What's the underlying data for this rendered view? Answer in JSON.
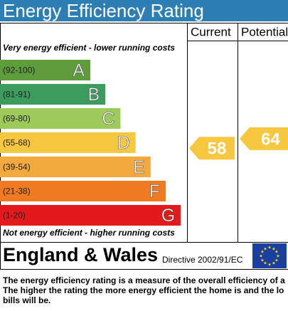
{
  "header": {
    "title": "Energy Efficiency Rating"
  },
  "table": {
    "columns": [
      "Current",
      "Potential"
    ],
    "top_note": "Very energy efficient - lower running costs",
    "bottom_note": "Not energy efficient - higher running costs",
    "bands": [
      {
        "range": "(92-100)",
        "letter": "A",
        "color": "#5f9c3b"
      },
      {
        "range": "(81-91)",
        "letter": "B",
        "color": "#3c9c5e"
      },
      {
        "range": "(69-80)",
        "letter": "C",
        "color": "#9ccb5c"
      },
      {
        "range": "(55-68)",
        "letter": "D",
        "color": "#f7c83f"
      },
      {
        "range": "(39-54)",
        "letter": "E",
        "color": "#f4a93e"
      },
      {
        "range": "(21-38)",
        "letter": "F",
        "color": "#ef7a22"
      },
      {
        "range": "(1-20)",
        "letter": "G",
        "color": "#e3191c"
      }
    ],
    "ratings": {
      "current": 58,
      "potential": 64
    },
    "footer": {
      "country": "England & Wales",
      "directive": "Directive 2002/91/EC"
    }
  },
  "description": [
    "The energy efficiency rating is a measure of the overall efficiency of a",
    "The higher the rating the more energy efficient the home is and the lo",
    "bills will be."
  ]
}
